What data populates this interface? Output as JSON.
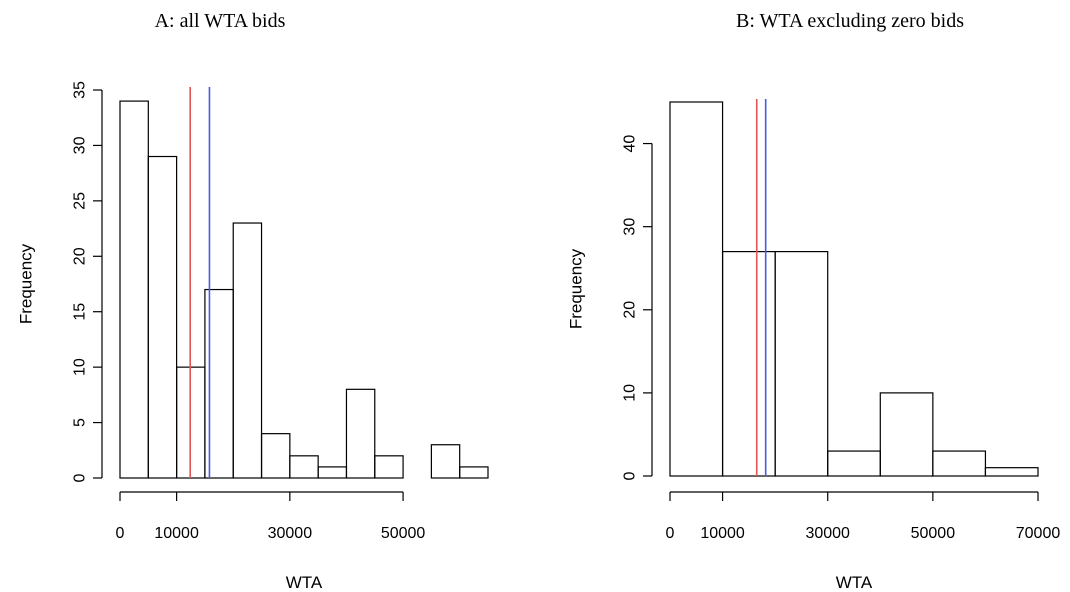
{
  "chart_data": [
    {
      "type": "histogram",
      "title": "A: all WTA bids",
      "xlabel": "WTA",
      "ylabel": "Frequency",
      "xticks": [
        0,
        10000,
        30000,
        50000
      ],
      "yticks": [
        0,
        5,
        10,
        15,
        20,
        25,
        30,
        35
      ],
      "xlim": [
        0,
        65000
      ],
      "ylim": [
        0,
        35
      ],
      "bins": [
        {
          "from": 0,
          "to": 5000,
          "count": 34
        },
        {
          "from": 5000,
          "to": 10000,
          "count": 29
        },
        {
          "from": 10000,
          "to": 15000,
          "count": 10
        },
        {
          "from": 15000,
          "to": 20000,
          "count": 17
        },
        {
          "from": 20000,
          "to": 25000,
          "count": 23
        },
        {
          "from": 25000,
          "to": 30000,
          "count": 4
        },
        {
          "from": 30000,
          "to": 35000,
          "count": 2
        },
        {
          "from": 35000,
          "to": 40000,
          "count": 1
        },
        {
          "from": 40000,
          "to": 45000,
          "count": 8
        },
        {
          "from": 45000,
          "to": 50000,
          "count": 2
        },
        {
          "from": 50000,
          "to": 55000,
          "count": 0
        },
        {
          "from": 55000,
          "to": 60000,
          "count": 3
        },
        {
          "from": 60000,
          "to": 65000,
          "count": 1
        }
      ],
      "vlines": [
        {
          "x": 12400,
          "color": "#e05555"
        },
        {
          "x": 15800,
          "color": "#4a5ae8"
        }
      ]
    },
    {
      "type": "histogram",
      "title": "B: WTA excluding zero bids",
      "xlabel": "WTA",
      "ylabel": "Frequency",
      "xticks": [
        0,
        10000,
        30000,
        50000,
        70000
      ],
      "yticks": [
        0,
        10,
        20,
        30,
        40
      ],
      "xlim": [
        0,
        70000
      ],
      "ylim": [
        0,
        45
      ],
      "bins": [
        {
          "from": 0,
          "to": 10000,
          "count": 45
        },
        {
          "from": 10000,
          "to": 20000,
          "count": 27
        },
        {
          "from": 20000,
          "to": 30000,
          "count": 27
        },
        {
          "from": 30000,
          "to": 40000,
          "count": 3
        },
        {
          "from": 40000,
          "to": 50000,
          "count": 10
        },
        {
          "from": 50000,
          "to": 60000,
          "count": 3
        },
        {
          "from": 60000,
          "to": 70000,
          "count": 1
        }
      ],
      "vlines": [
        {
          "x": 16500,
          "color": "#e05555"
        },
        {
          "x": 18200,
          "color": "#4a5ae8"
        }
      ]
    }
  ]
}
